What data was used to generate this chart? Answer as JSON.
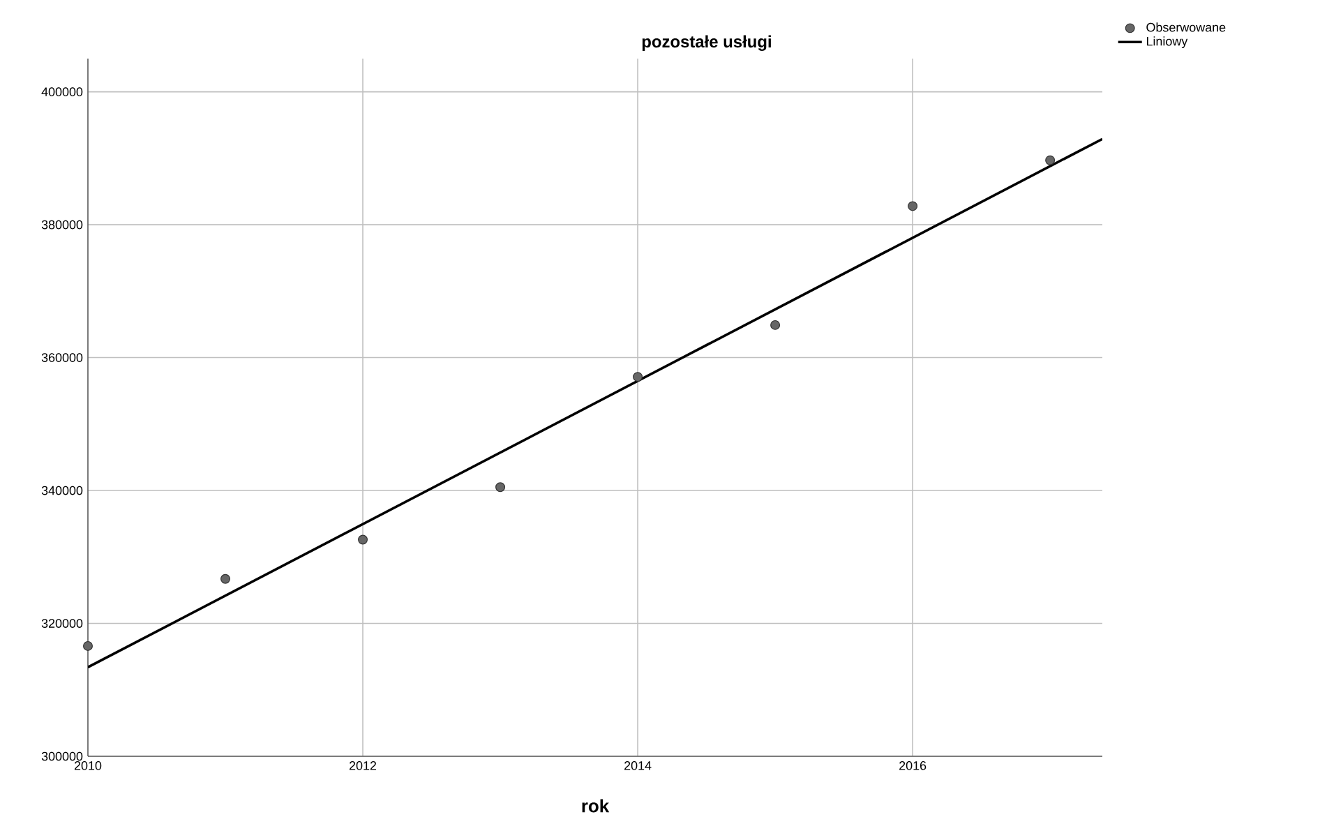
{
  "chart_data": {
    "type": "scatter",
    "title": "pozostałe usługi",
    "xlabel": "rok",
    "xlim": [
      2010,
      2017.38
    ],
    "xticks": [
      2010,
      2012,
      2014,
      2016
    ],
    "ylim": [
      300000,
      405000
    ],
    "yticks": [
      300000,
      320000,
      340000,
      360000,
      380000,
      400000
    ],
    "grid": true,
    "legend": "top right",
    "series": [
      {
        "name": "Obserwowane",
        "marker": "circle",
        "color": "#666666",
        "x": [
          2010,
          2011,
          2012,
          2013,
          2014,
          2015,
          2016,
          2017
        ],
        "values": [
          316600,
          326700,
          332600,
          340500,
          357100,
          364900,
          382800,
          389700
        ]
      },
      {
        "name": "Liniowy",
        "type": "line",
        "marker": "none",
        "color": "#000000",
        "line_style": "solid",
        "x": [
          2010,
          2017.38
        ],
        "values": [
          313400,
          392900
        ]
      }
    ]
  }
}
